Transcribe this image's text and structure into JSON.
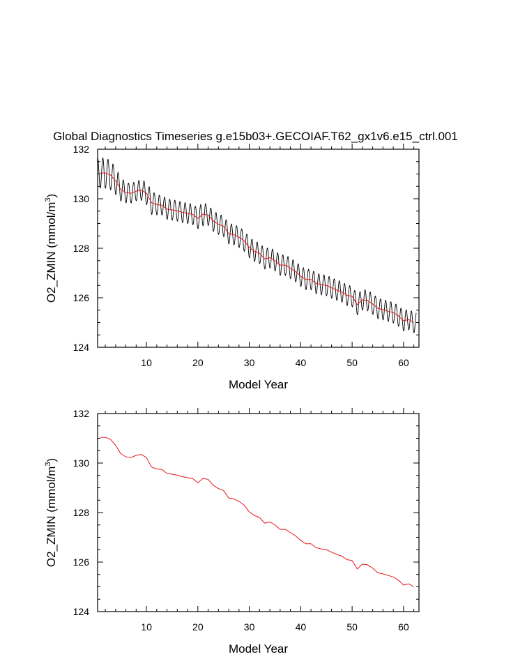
{
  "title": "Global Diagnostics Timeseries g.e15b03+.GECOIAF.T62_gx1v6.e15_ctrl.001",
  "colors": {
    "monthly": "#000000",
    "annual": "#e8141c",
    "axes": "#000000"
  },
  "chart_data": [
    {
      "type": "line",
      "xlabel": "Model Year",
      "ylabel": "O2_ZMIN (mmol/m",
      "ylabel_sup": "3",
      "ylabel_close": ")",
      "xlim": [
        0.5,
        63.0
      ],
      "ylim": [
        124,
        132
      ],
      "x_ticks": [
        10,
        20,
        30,
        40,
        50,
        60
      ],
      "y_ticks": [
        124,
        126,
        128,
        130,
        132
      ],
      "grid": false,
      "series": [
        {
          "color": "#000000",
          "style": "monthly-cycle",
          "amplitude": [
            0.62,
            0.62,
            0.6,
            0.55,
            0.48,
            0.42,
            0.4,
            0.4,
            0.42,
            0.45,
            0.48,
            0.42,
            0.4,
            0.42,
            0.42,
            0.42,
            0.42,
            0.42,
            0.42,
            0.42,
            0.48,
            0.42,
            0.42,
            0.42,
            0.42,
            0.42,
            0.42,
            0.42,
            0.42,
            0.42,
            0.42,
            0.42,
            0.42,
            0.42,
            0.42,
            0.42,
            0.42,
            0.42,
            0.42,
            0.42,
            0.42,
            0.42,
            0.42,
            0.42,
            0.42,
            0.42,
            0.42,
            0.42,
            0.42,
            0.42,
            0.42,
            0.42,
            0.42,
            0.42,
            0.42,
            0.42,
            0.42,
            0.42,
            0.42,
            0.42,
            0.42,
            0.42
          ]
        },
        {
          "color": "#e8141c",
          "style": "annual-mean",
          "x": [
            1.0,
            2.0,
            3.0,
            4.0,
            5.0,
            6.0,
            7.0,
            8.0,
            9.0,
            10.0,
            11.0,
            12.0,
            13.0,
            14.0,
            15.0,
            16.0,
            17.0,
            18.0,
            19.0,
            20.0,
            21.0,
            22.0,
            23.0,
            24.0,
            25.0,
            26.0,
            27.0,
            28.0,
            29.0,
            30.0,
            31.0,
            32.0,
            33.0,
            34.0,
            35.0,
            36.0,
            37.0,
            38.0,
            39.0,
            40.0,
            41.0,
            42.0,
            43.0,
            44.0,
            45.0,
            46.0,
            47.0,
            48.0,
            49.0,
            50.0,
            51.0,
            52.0,
            53.0,
            54.0,
            55.0,
            56.0,
            57.0,
            58.0,
            59.0,
            60.0,
            61.0,
            62.0
          ],
          "values": [
            131.04,
            131.04,
            130.96,
            130.72,
            130.38,
            130.25,
            130.22,
            130.31,
            130.35,
            130.22,
            129.84,
            129.76,
            129.74,
            129.58,
            129.55,
            129.51,
            129.45,
            129.41,
            129.37,
            129.2,
            129.38,
            129.34,
            129.1,
            128.97,
            128.89,
            128.59,
            128.55,
            128.45,
            128.3,
            128.03,
            127.88,
            127.8,
            127.57,
            127.62,
            127.5,
            127.32,
            127.32,
            127.19,
            127.06,
            126.87,
            126.74,
            126.74,
            126.58,
            126.53,
            126.5,
            126.4,
            126.31,
            126.24,
            126.1,
            126.06,
            125.72,
            125.92,
            125.89,
            125.75,
            125.57,
            125.52,
            125.46,
            125.4,
            125.27,
            125.07,
            125.12,
            125.0
          ]
        }
      ]
    },
    {
      "type": "line",
      "xlabel": "Model Year",
      "ylabel": "O2_ZMIN (mmol/m",
      "ylabel_sup": "3",
      "ylabel_close": ")",
      "xlim": [
        0.5,
        63.0
      ],
      "ylim": [
        124,
        132
      ],
      "x_ticks": [
        10,
        20,
        30,
        40,
        50,
        60
      ],
      "y_ticks": [
        124,
        126,
        128,
        130,
        132
      ],
      "grid": false,
      "series": [
        {
          "color": "#e8141c",
          "style": "annual-mean",
          "x": [
            1.0,
            2.0,
            3.0,
            4.0,
            5.0,
            6.0,
            7.0,
            8.0,
            9.0,
            10.0,
            11.0,
            12.0,
            13.0,
            14.0,
            15.0,
            16.0,
            17.0,
            18.0,
            19.0,
            20.0,
            21.0,
            22.0,
            23.0,
            24.0,
            25.0,
            26.0,
            27.0,
            28.0,
            29.0,
            30.0,
            31.0,
            32.0,
            33.0,
            34.0,
            35.0,
            36.0,
            37.0,
            38.0,
            39.0,
            40.0,
            41.0,
            42.0,
            43.0,
            44.0,
            45.0,
            46.0,
            47.0,
            48.0,
            49.0,
            50.0,
            51.0,
            52.0,
            53.0,
            54.0,
            55.0,
            56.0,
            57.0,
            58.0,
            59.0,
            60.0,
            61.0,
            62.0
          ],
          "values": [
            131.04,
            131.04,
            130.96,
            130.72,
            130.38,
            130.25,
            130.22,
            130.31,
            130.35,
            130.22,
            129.84,
            129.76,
            129.74,
            129.58,
            129.55,
            129.51,
            129.45,
            129.41,
            129.37,
            129.2,
            129.38,
            129.34,
            129.1,
            128.97,
            128.89,
            128.59,
            128.55,
            128.45,
            128.3,
            128.03,
            127.88,
            127.8,
            127.57,
            127.62,
            127.5,
            127.32,
            127.32,
            127.19,
            127.06,
            126.87,
            126.74,
            126.74,
            126.58,
            126.53,
            126.5,
            126.4,
            126.31,
            126.24,
            126.1,
            126.06,
            125.72,
            125.92,
            125.89,
            125.75,
            125.57,
            125.52,
            125.46,
            125.4,
            125.27,
            125.07,
            125.12,
            125.0
          ]
        }
      ]
    }
  ]
}
